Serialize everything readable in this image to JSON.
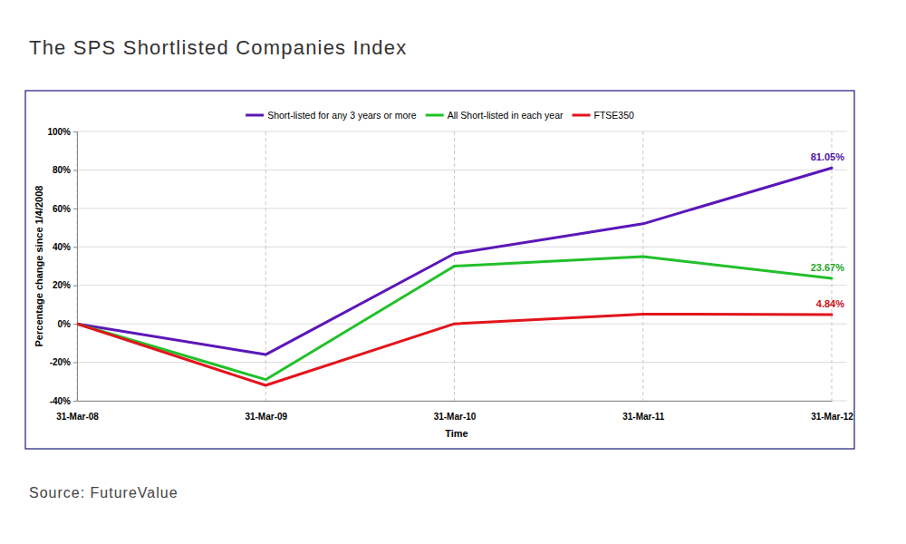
{
  "chart_data": {
    "type": "line",
    "title": "The SPS Shortlisted Companies Index",
    "source": "Source: FutureValue",
    "x_label": "Time",
    "y_label": "Percentage change since 1/4/2008",
    "categories": [
      "31-Mar-08",
      "31-Mar-09",
      "31-Mar-10",
      "31-Mar-11",
      "31-Mar-12"
    ],
    "series": [
      {
        "name": "Short-listed for any 3 years or more",
        "color": "#5b17b8",
        "values": [
          0,
          -16,
          36.5,
          52,
          81.05
        ],
        "value_labels": [
          null,
          null,
          null,
          null,
          "81.05%"
        ]
      },
      {
        "name": "All Short-listed in each year",
        "color": "#22c02a",
        "values": [
          0,
          -29,
          30,
          35,
          23.67
        ],
        "value_labels": [
          null,
          null,
          null,
          null,
          "23.67%"
        ]
      },
      {
        "name": "FTSE350",
        "color": "#e3141c",
        "values": [
          0,
          -32,
          0,
          5,
          4.84
        ],
        "value_labels": [
          null,
          null,
          null,
          null,
          "4.84%"
        ]
      }
    ],
    "ylim": [
      -40,
      100
    ],
    "yticks": [
      {
        "value": -40,
        "label": "-40%"
      },
      {
        "value": -20,
        "label": "-20%"
      },
      {
        "value": 0,
        "label": "0%"
      },
      {
        "value": 20,
        "label": "20%"
      },
      {
        "value": 40,
        "label": "40%"
      },
      {
        "value": 60,
        "label": "60%"
      },
      {
        "value": 80,
        "label": "80%"
      },
      {
        "value": 100,
        "label": "100%"
      }
    ],
    "grid": true,
    "legend": "top",
    "data_labels": true
  }
}
